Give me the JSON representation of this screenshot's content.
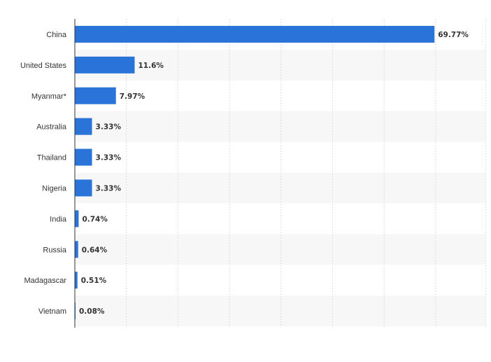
{
  "chart_data": {
    "type": "bar",
    "orientation": "horizontal",
    "categories": [
      "China",
      "United States",
      "Myanmar*",
      "Australia",
      "Thailand",
      "Nigeria",
      "India",
      "Russia",
      "Madagascar",
      "Vietnam"
    ],
    "values": [
      69.77,
      11.6,
      7.97,
      3.33,
      3.33,
      3.33,
      0.74,
      0.64,
      0.51,
      0.08
    ],
    "value_labels": [
      "69.77%",
      "11.6%",
      "7.97%",
      "3.33%",
      "3.33%",
      "3.33%",
      "0.74%",
      "0.64%",
      "0.51%",
      "0.08%"
    ],
    "xlim": [
      0,
      80
    ],
    "grid": true,
    "title": "",
    "xlabel": "",
    "ylabel": "",
    "colors": {
      "bar": "#2a74d9",
      "band": "#f7f7f7",
      "grid": "#dddddd",
      "axis": "#333333",
      "text": "#333333"
    }
  }
}
